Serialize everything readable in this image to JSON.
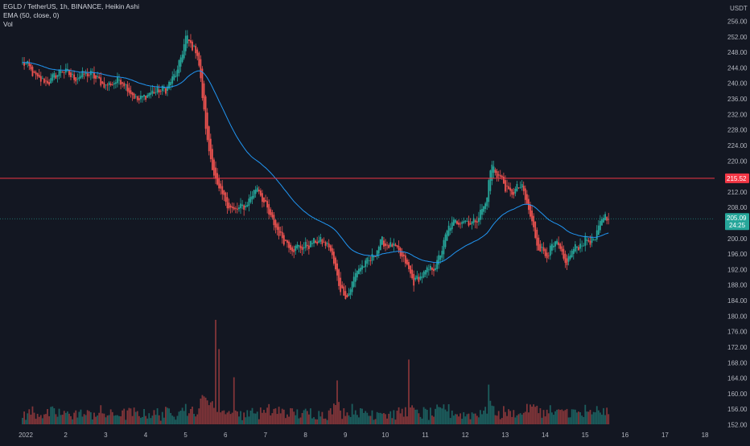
{
  "legend": {
    "title": "EGLD / TetherUS, 1h, BINANCE, Heikin Ashi",
    "ema": "EMA (50, close, 0)",
    "vol": "Vol"
  },
  "colors": {
    "background": "#131722",
    "up": "#26a69a",
    "down": "#ef5350",
    "ema": "#2196f3",
    "hline": "#f23645",
    "current_line": "#26a69a"
  },
  "chart_data": {
    "type": "candlestick",
    "symbol": "EGLD / TetherUS",
    "interval": "1h",
    "exchange": "BINANCE",
    "candle_style": "Heikin Ashi",
    "currency": "USDT",
    "y_ticks": [
      "256.00",
      "252.00",
      "248.00",
      "244.00",
      "240.00",
      "236.00",
      "232.00",
      "228.00",
      "224.00",
      "220.00",
      "216.00",
      "212.00",
      "208.00",
      "204.00",
      "200.00",
      "196.00",
      "192.00",
      "188.00",
      "184.00",
      "180.00",
      "176.00",
      "172.00",
      "168.00",
      "164.00",
      "160.00",
      "156.00",
      "152.00"
    ],
    "ylim": [
      151.5,
      257.5
    ],
    "x_ticks": [
      "2022",
      "2",
      "3",
      "4",
      "5",
      "6",
      "7",
      "8",
      "9",
      "10",
      "11",
      "12",
      "13",
      "14",
      "15",
      "16",
      "17",
      "18"
    ],
    "x_tick_values": [
      1,
      2,
      3,
      4,
      5,
      6,
      7,
      8,
      9,
      10,
      11,
      12,
      13,
      14,
      15,
      16,
      17,
      18
    ],
    "horizontal_line": {
      "value": 215.52,
      "label": "215.52"
    },
    "last_price": {
      "value": 205.09,
      "label": "205.09",
      "countdown": "24:25"
    },
    "ema_period": 50,
    "price_path": [
      {
        "day": 1.0,
        "price": 245.0
      },
      {
        "day": 1.3,
        "price": 241.0
      },
      {
        "day": 1.6,
        "price": 240.5
      },
      {
        "day": 1.9,
        "price": 243.5
      },
      {
        "day": 2.2,
        "price": 241.5
      },
      {
        "day": 2.6,
        "price": 242.5
      },
      {
        "day": 3.0,
        "price": 239.5
      },
      {
        "day": 3.4,
        "price": 241.0
      },
      {
        "day": 3.8,
        "price": 235.5
      },
      {
        "day": 4.1,
        "price": 237.5
      },
      {
        "day": 4.5,
        "price": 238.5
      },
      {
        "day": 4.8,
        "price": 243.0
      },
      {
        "day": 5.0,
        "price": 251.5
      },
      {
        "day": 5.3,
        "price": 248.0
      },
      {
        "day": 5.55,
        "price": 225.0
      },
      {
        "day": 5.8,
        "price": 213.0
      },
      {
        "day": 6.2,
        "price": 207.0
      },
      {
        "day": 6.5,
        "price": 208.5
      },
      {
        "day": 6.8,
        "price": 213.5
      },
      {
        "day": 7.1,
        "price": 206.0
      },
      {
        "day": 7.4,
        "price": 200.5
      },
      {
        "day": 7.7,
        "price": 197.5
      },
      {
        "day": 8.0,
        "price": 198.0
      },
      {
        "day": 8.3,
        "price": 199.5
      },
      {
        "day": 8.6,
        "price": 198.0
      },
      {
        "day": 8.85,
        "price": 188.0
      },
      {
        "day": 9.05,
        "price": 185.0
      },
      {
        "day": 9.3,
        "price": 192.0
      },
      {
        "day": 9.6,
        "price": 194.0
      },
      {
        "day": 9.9,
        "price": 199.0
      },
      {
        "day": 10.2,
        "price": 198.0
      },
      {
        "day": 10.5,
        "price": 194.0
      },
      {
        "day": 10.7,
        "price": 189.0
      },
      {
        "day": 11.0,
        "price": 191.0
      },
      {
        "day": 11.3,
        "price": 193.5
      },
      {
        "day": 11.6,
        "price": 203.0
      },
      {
        "day": 11.9,
        "price": 205.0
      },
      {
        "day": 12.2,
        "price": 204.0
      },
      {
        "day": 12.5,
        "price": 208.5
      },
      {
        "day": 12.65,
        "price": 218.5
      },
      {
        "day": 12.9,
        "price": 215.5
      },
      {
        "day": 13.1,
        "price": 211.5
      },
      {
        "day": 13.4,
        "price": 213.5
      },
      {
        "day": 13.6,
        "price": 207.0
      },
      {
        "day": 13.8,
        "price": 199.0
      },
      {
        "day": 14.0,
        "price": 196.0
      },
      {
        "day": 14.3,
        "price": 198.5
      },
      {
        "day": 14.5,
        "price": 193.5
      },
      {
        "day": 14.7,
        "price": 197.0
      },
      {
        "day": 15.0,
        "price": 199.5
      },
      {
        "day": 15.25,
        "price": 199.5
      },
      {
        "day": 15.45,
        "price": 206.0
      },
      {
        "day": 15.6,
        "price": 205.09
      }
    ],
    "volume_spikes": [
      {
        "day": 5.75,
        "rel": 1.0
      },
      {
        "day": 5.85,
        "rel": 0.72
      },
      {
        "day": 10.6,
        "rel": 0.62
      },
      {
        "day": 6.2,
        "rel": 0.45
      },
      {
        "day": 8.8,
        "rel": 0.42
      },
      {
        "day": 12.6,
        "rel": 0.38
      }
    ]
  }
}
